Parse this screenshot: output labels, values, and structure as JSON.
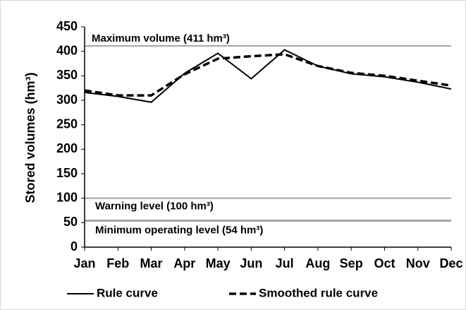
{
  "chart_data": {
    "type": "line",
    "y_label": "Stored volumes (hm³)",
    "categories": [
      "Jan",
      "Feb",
      "Mar",
      "Apr",
      "May",
      "Jun",
      "Jul",
      "Aug",
      "Sep",
      "Oct",
      "Nov",
      "Dec"
    ],
    "series": [
      {
        "name": "Rule curve",
        "color": "#000000",
        "dash": false,
        "values": [
          316,
          308,
          296,
          355,
          396,
          344,
          403,
          370,
          354,
          348,
          337,
          323
        ]
      },
      {
        "name": "Smoothed rule curve",
        "color": "#000000",
        "dash": true,
        "values": [
          320,
          310,
          310,
          353,
          385,
          390,
          394,
          370,
          356,
          350,
          340,
          330
        ]
      }
    ],
    "reference_lines": [
      {
        "value": 411,
        "label": "Maximum volume (411 hm³)"
      },
      {
        "value": 100,
        "label": "Warning level (100 hm³)"
      },
      {
        "value": 54,
        "label": "Minimum operating level (54 hm³)"
      }
    ],
    "ylim": [
      0,
      450
    ],
    "yticks": [
      0,
      50,
      100,
      150,
      200,
      250,
      300,
      350,
      400,
      450
    ],
    "grid": false,
    "legend": "bottom"
  }
}
